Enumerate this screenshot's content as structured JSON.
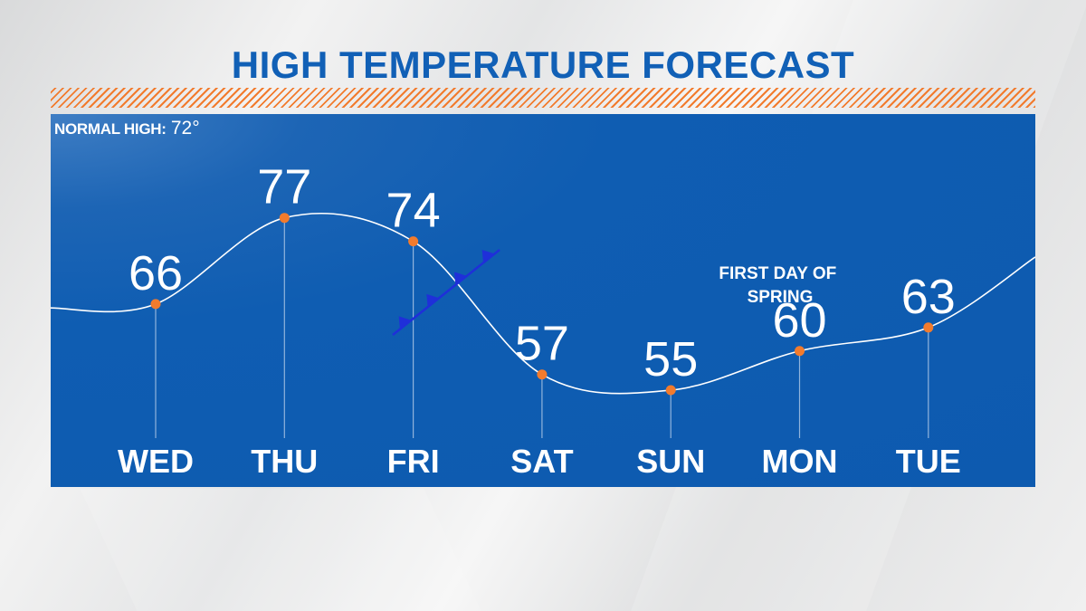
{
  "title": "HIGH TEMPERATURE FORECAST",
  "normal_high": {
    "label": "NORMAL HIGH:",
    "value": "72°"
  },
  "annotation": {
    "line1": "FIRST DAY OF",
    "line2": "SPRING"
  },
  "colors": {
    "title": "#1160b6",
    "panel": "#0d5aaf",
    "accent": "#f27b2d",
    "front": "#1f2fd9",
    "text": "#ffffff"
  },
  "chart_data": {
    "type": "line",
    "categories": [
      "WED",
      "THU",
      "FRI",
      "SAT",
      "SUN",
      "MON",
      "TUE"
    ],
    "series": [
      {
        "values": [
          66,
          77,
          74,
          57,
          55,
          60,
          63
        ]
      }
    ],
    "data_labels": [
      "66",
      "77",
      "74",
      "57",
      "55",
      "60",
      "63"
    ],
    "curve": "smooth",
    "cold_front_between": [
      "FRI",
      "SAT"
    ]
  }
}
